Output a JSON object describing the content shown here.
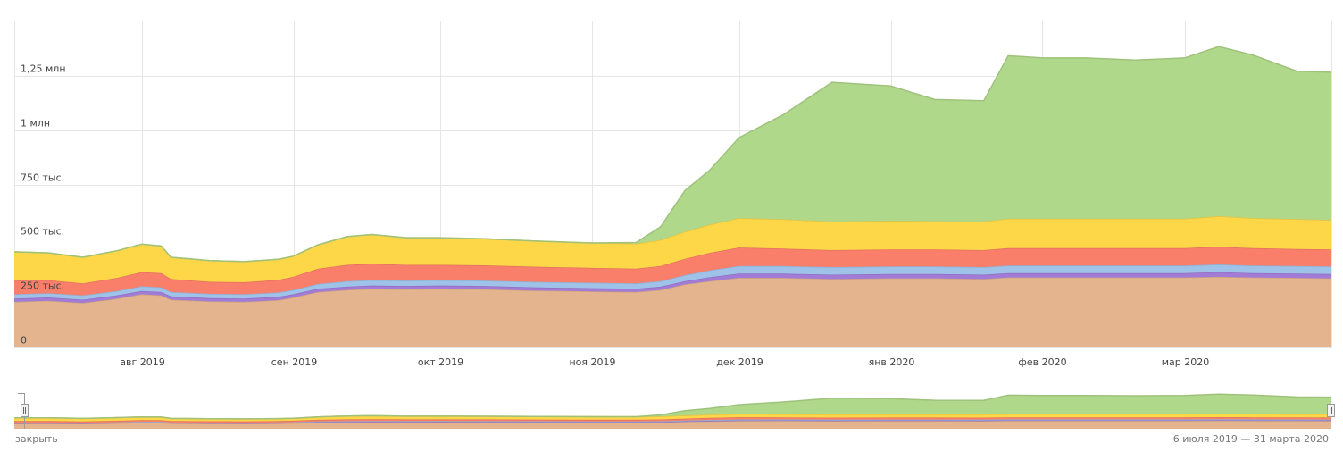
{
  "footer": {
    "close_label": "закрыть",
    "date_range": "6 июля 2019 — 31 марта 2020"
  },
  "colors": {
    "series_1": "#e4b48e",
    "series_2": "#a27bd6",
    "series_3": "#9fc2e8",
    "series_4": "#fa7f6a",
    "series_5": "#fdd748",
    "series_6": "#b0d88a",
    "grid": "#e6e6e6",
    "handle": "#999999"
  },
  "chart_data": {
    "type": "area",
    "stacked": true,
    "x_start": "2019-07-06",
    "x_end": "2020-03-31",
    "x_ticks": [
      {
        "date": "2019-08-01",
        "label": "авг 2019"
      },
      {
        "date": "2019-09-01",
        "label": "сен 2019"
      },
      {
        "date": "2019-10-01",
        "label": "окт 2019"
      },
      {
        "date": "2019-11-01",
        "label": "ноя 2019"
      },
      {
        "date": "2019-12-01",
        "label": "дек 2019"
      },
      {
        "date": "2020-01-01",
        "label": "янв 2020"
      },
      {
        "date": "2020-02-01",
        "label": "фев 2020"
      },
      {
        "date": "2020-03-01",
        "label": "мар 2020"
      }
    ],
    "y_ticks": [
      {
        "value": 0,
        "label": "0"
      },
      {
        "value": 250000,
        "label": "250 тыс."
      },
      {
        "value": 500000,
        "label": "500 тыс."
      },
      {
        "value": 750000,
        "label": "750 тыс."
      },
      {
        "value": 1000000,
        "label": "1 млн"
      },
      {
        "value": 1250000,
        "label": "1,25 млн"
      }
    ],
    "ylim": [
      0,
      1500000
    ],
    "grid": true,
    "legend": "none",
    "series": [
      {
        "color": "#e4b48e",
        "points": [
          [
            "2019-07-06",
            210000
          ],
          [
            "2019-07-13",
            215000
          ],
          [
            "2019-07-20",
            205000
          ],
          [
            "2019-07-27",
            225000
          ],
          [
            "2019-08-01",
            245000
          ],
          [
            "2019-08-05",
            240000
          ],
          [
            "2019-08-07",
            220000
          ],
          [
            "2019-08-15",
            212000
          ],
          [
            "2019-08-22",
            210000
          ],
          [
            "2019-08-29",
            218000
          ],
          [
            "2019-09-01",
            230000
          ],
          [
            "2019-09-06",
            255000
          ],
          [
            "2019-09-12",
            265000
          ],
          [
            "2019-09-17",
            270000
          ],
          [
            "2019-09-24",
            268000
          ],
          [
            "2019-10-01",
            270000
          ],
          [
            "2019-10-10",
            268000
          ],
          [
            "2019-10-20",
            262000
          ],
          [
            "2019-11-01",
            258000
          ],
          [
            "2019-11-10",
            255000
          ],
          [
            "2019-11-15",
            265000
          ],
          [
            "2019-11-20",
            290000
          ],
          [
            "2019-11-25",
            305000
          ],
          [
            "2019-12-01",
            320000
          ],
          [
            "2019-12-10",
            320000
          ],
          [
            "2019-12-20",
            315000
          ],
          [
            "2020-01-01",
            318000
          ],
          [
            "2020-01-10",
            318000
          ],
          [
            "2020-01-20",
            315000
          ],
          [
            "2020-01-25",
            322000
          ],
          [
            "2020-02-01",
            322000
          ],
          [
            "2020-02-10",
            322000
          ],
          [
            "2020-02-20",
            322000
          ],
          [
            "2020-03-01",
            322000
          ],
          [
            "2020-03-08",
            325000
          ],
          [
            "2020-03-15",
            322000
          ],
          [
            "2020-03-24",
            320000
          ],
          [
            "2020-03-31",
            318000
          ]
        ]
      },
      {
        "color": "#a27bd6",
        "points": [
          [
            "2019-07-06",
            15000
          ],
          [
            "2019-07-13",
            15000
          ],
          [
            "2019-07-20",
            15000
          ],
          [
            "2019-07-27",
            15000
          ],
          [
            "2019-08-01",
            15000
          ],
          [
            "2019-08-05",
            15000
          ],
          [
            "2019-08-07",
            15000
          ],
          [
            "2019-08-15",
            15000
          ],
          [
            "2019-08-22",
            15000
          ],
          [
            "2019-08-29",
            15000
          ],
          [
            "2019-09-01",
            15000
          ],
          [
            "2019-09-06",
            15000
          ],
          [
            "2019-09-12",
            15000
          ],
          [
            "2019-09-17",
            15000
          ],
          [
            "2019-09-24",
            15000
          ],
          [
            "2019-10-01",
            15000
          ],
          [
            "2019-10-10",
            15000
          ],
          [
            "2019-10-20",
            15000
          ],
          [
            "2019-11-01",
            15000
          ],
          [
            "2019-11-10",
            15000
          ],
          [
            "2019-11-15",
            15000
          ],
          [
            "2019-11-20",
            15000
          ],
          [
            "2019-11-25",
            18000
          ],
          [
            "2019-12-01",
            20000
          ],
          [
            "2019-12-10",
            20000
          ],
          [
            "2019-12-20",
            20000
          ],
          [
            "2020-01-01",
            20000
          ],
          [
            "2020-01-10",
            20000
          ],
          [
            "2020-01-20",
            20000
          ],
          [
            "2020-01-25",
            20000
          ],
          [
            "2020-02-01",
            20000
          ],
          [
            "2020-02-10",
            20000
          ],
          [
            "2020-02-20",
            20000
          ],
          [
            "2020-03-01",
            20000
          ],
          [
            "2020-03-08",
            22000
          ],
          [
            "2020-03-15",
            20000
          ],
          [
            "2020-03-24",
            20000
          ],
          [
            "2020-03-31",
            20000
          ]
        ]
      },
      {
        "color": "#9fc2e8",
        "points": [
          [
            "2019-07-06",
            20000
          ],
          [
            "2019-07-13",
            20000
          ],
          [
            "2019-07-20",
            20000
          ],
          [
            "2019-07-27",
            20000
          ],
          [
            "2019-08-01",
            22000
          ],
          [
            "2019-08-05",
            22000
          ],
          [
            "2019-08-07",
            20000
          ],
          [
            "2019-08-15",
            20000
          ],
          [
            "2019-08-22",
            20000
          ],
          [
            "2019-08-29",
            20000
          ],
          [
            "2019-09-01",
            20000
          ],
          [
            "2019-09-06",
            22000
          ],
          [
            "2019-09-12",
            25000
          ],
          [
            "2019-09-17",
            25000
          ],
          [
            "2019-09-24",
            25000
          ],
          [
            "2019-10-01",
            25000
          ],
          [
            "2019-10-10",
            25000
          ],
          [
            "2019-10-20",
            25000
          ],
          [
            "2019-11-01",
            25000
          ],
          [
            "2019-11-10",
            25000
          ],
          [
            "2019-11-15",
            25000
          ],
          [
            "2019-11-20",
            28000
          ],
          [
            "2019-11-25",
            32000
          ],
          [
            "2019-12-01",
            35000
          ],
          [
            "2019-12-10",
            35000
          ],
          [
            "2019-12-20",
            35000
          ],
          [
            "2020-01-01",
            35000
          ],
          [
            "2020-01-10",
            35000
          ],
          [
            "2020-01-20",
            35000
          ],
          [
            "2020-01-25",
            35000
          ],
          [
            "2020-02-01",
            35000
          ],
          [
            "2020-02-10",
            35000
          ],
          [
            "2020-02-20",
            35000
          ],
          [
            "2020-03-01",
            35000
          ],
          [
            "2020-03-08",
            35000
          ],
          [
            "2020-03-15",
            35000
          ],
          [
            "2020-03-24",
            35000
          ],
          [
            "2020-03-31",
            35000
          ]
        ]
      },
      {
        "color": "#fa7f6a",
        "points": [
          [
            "2019-07-06",
            65000
          ],
          [
            "2019-07-13",
            60000
          ],
          [
            "2019-07-20",
            55000
          ],
          [
            "2019-07-27",
            60000
          ],
          [
            "2019-08-01",
            65000
          ],
          [
            "2019-08-05",
            65000
          ],
          [
            "2019-08-07",
            60000
          ],
          [
            "2019-08-15",
            55000
          ],
          [
            "2019-08-22",
            55000
          ],
          [
            "2019-08-29",
            58000
          ],
          [
            "2019-09-01",
            60000
          ],
          [
            "2019-09-06",
            70000
          ],
          [
            "2019-09-12",
            75000
          ],
          [
            "2019-09-17",
            75000
          ],
          [
            "2019-09-24",
            72000
          ],
          [
            "2019-10-01",
            70000
          ],
          [
            "2019-10-10",
            70000
          ],
          [
            "2019-10-20",
            70000
          ],
          [
            "2019-11-01",
            68000
          ],
          [
            "2019-11-10",
            68000
          ],
          [
            "2019-11-15",
            70000
          ],
          [
            "2019-11-20",
            75000
          ],
          [
            "2019-11-25",
            80000
          ],
          [
            "2019-12-01",
            85000
          ],
          [
            "2019-12-10",
            80000
          ],
          [
            "2019-12-20",
            78000
          ],
          [
            "2020-01-01",
            78000
          ],
          [
            "2020-01-10",
            78000
          ],
          [
            "2020-01-20",
            78000
          ],
          [
            "2020-01-25",
            80000
          ],
          [
            "2020-02-01",
            80000
          ],
          [
            "2020-02-10",
            80000
          ],
          [
            "2020-02-20",
            80000
          ],
          [
            "2020-03-01",
            80000
          ],
          [
            "2020-03-08",
            82000
          ],
          [
            "2020-03-15",
            80000
          ],
          [
            "2020-03-24",
            78000
          ],
          [
            "2020-03-31",
            78000
          ]
        ]
      },
      {
        "color": "#fdd748",
        "points": [
          [
            "2019-07-06",
            130000
          ],
          [
            "2019-07-13",
            125000
          ],
          [
            "2019-07-20",
            120000
          ],
          [
            "2019-07-27",
            125000
          ],
          [
            "2019-08-01",
            128000
          ],
          [
            "2019-08-05",
            125000
          ],
          [
            "2019-08-07",
            100000
          ],
          [
            "2019-08-15",
            98000
          ],
          [
            "2019-08-22",
            95000
          ],
          [
            "2019-08-29",
            95000
          ],
          [
            "2019-09-01",
            95000
          ],
          [
            "2019-09-06",
            110000
          ],
          [
            "2019-09-12",
            130000
          ],
          [
            "2019-09-17",
            135000
          ],
          [
            "2019-09-24",
            125000
          ],
          [
            "2019-10-01",
            125000
          ],
          [
            "2019-10-10",
            122000
          ],
          [
            "2019-10-20",
            118000
          ],
          [
            "2019-11-01",
            115000
          ],
          [
            "2019-11-10",
            115000
          ],
          [
            "2019-11-15",
            120000
          ],
          [
            "2019-11-20",
            125000
          ],
          [
            "2019-11-25",
            130000
          ],
          [
            "2019-12-01",
            135000
          ],
          [
            "2019-12-10",
            135000
          ],
          [
            "2019-12-20",
            132000
          ],
          [
            "2020-01-01",
            132000
          ],
          [
            "2020-01-10",
            130000
          ],
          [
            "2020-01-20",
            132000
          ],
          [
            "2020-01-25",
            135000
          ],
          [
            "2020-02-01",
            135000
          ],
          [
            "2020-02-10",
            135000
          ],
          [
            "2020-02-20",
            135000
          ],
          [
            "2020-03-01",
            135000
          ],
          [
            "2020-03-08",
            140000
          ],
          [
            "2020-03-15",
            138000
          ],
          [
            "2020-03-24",
            138000
          ],
          [
            "2020-03-31",
            135000
          ]
        ]
      },
      {
        "color": "#b0d88a",
        "points": [
          [
            "2019-07-06",
            0
          ],
          [
            "2019-07-13",
            0
          ],
          [
            "2019-07-20",
            0
          ],
          [
            "2019-07-27",
            0
          ],
          [
            "2019-08-01",
            0
          ],
          [
            "2019-08-05",
            0
          ],
          [
            "2019-08-07",
            0
          ],
          [
            "2019-08-15",
            0
          ],
          [
            "2019-08-22",
            0
          ],
          [
            "2019-08-29",
            0
          ],
          [
            "2019-09-01",
            0
          ],
          [
            "2019-09-06",
            0
          ],
          [
            "2019-09-12",
            0
          ],
          [
            "2019-09-17",
            0
          ],
          [
            "2019-09-24",
            0
          ],
          [
            "2019-10-01",
            0
          ],
          [
            "2019-10-10",
            0
          ],
          [
            "2019-10-20",
            0
          ],
          [
            "2019-11-01",
            0
          ],
          [
            "2019-11-10",
            5000
          ],
          [
            "2019-11-15",
            60000
          ],
          [
            "2019-11-20",
            190000
          ],
          [
            "2019-11-25",
            250000
          ],
          [
            "2019-12-01",
            370000
          ],
          [
            "2019-12-10",
            480000
          ],
          [
            "2019-12-20",
            640000
          ],
          [
            "2020-01-01",
            620000
          ],
          [
            "2020-01-10",
            560000
          ],
          [
            "2020-01-20",
            555000
          ],
          [
            "2020-01-25",
            750000
          ],
          [
            "2020-02-01",
            740000
          ],
          [
            "2020-02-10",
            740000
          ],
          [
            "2020-02-20",
            730000
          ],
          [
            "2020-03-01",
            740000
          ],
          [
            "2020-03-08",
            780000
          ],
          [
            "2020-03-15",
            750000
          ],
          [
            "2020-03-24",
            680000
          ],
          [
            "2020-03-31",
            680000
          ]
        ]
      }
    ]
  }
}
